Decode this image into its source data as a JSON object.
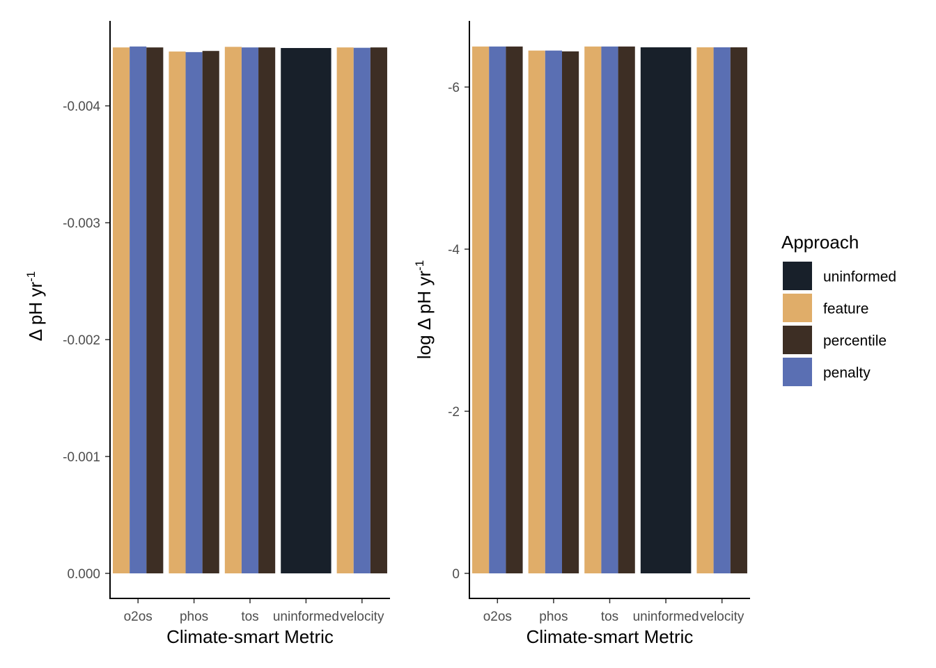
{
  "chart_data": [
    {
      "type": "bar",
      "xlabel": "Climate-smart Metric",
      "ylabel": "Δ pH yr",
      "ylabel_superscript": "-1",
      "categories": [
        "o2os",
        "phos",
        "tos",
        "uninformed",
        "velocity"
      ],
      "ylim": [
        0,
        -0.00476
      ],
      "yticks": [
        0.0,
        -0.001,
        -0.002,
        -0.003,
        -0.004
      ],
      "ytick_labels": [
        "0.000",
        "-0.001",
        "-0.002",
        "-0.003",
        "-0.004"
      ],
      "series": [
        {
          "name": "feature",
          "values": [
            -0.0045,
            -0.004465,
            -0.004505,
            null,
            -0.0045
          ]
        },
        {
          "name": "penalty",
          "values": [
            -0.004508,
            -0.00446,
            -0.0045,
            null,
            -0.004497
          ]
        },
        {
          "name": "percentile",
          "values": [
            -0.0045,
            -0.00447,
            -0.0045,
            null,
            -0.0045
          ]
        },
        {
          "name": "uninformed",
          "values": [
            null,
            null,
            null,
            -0.004495,
            null
          ]
        }
      ]
    },
    {
      "type": "bar",
      "xlabel": "Climate-smart Metric",
      "ylabel": "log Δ pH yr",
      "ylabel_superscript": "-1",
      "categories": [
        "o2os",
        "phos",
        "tos",
        "uninformed",
        "velocity"
      ],
      "ylim": [
        0,
        -6.86
      ],
      "yticks": [
        0,
        -2,
        -4,
        -6
      ],
      "ytick_labels": [
        "0",
        "-2",
        "-4",
        "-6"
      ],
      "series": [
        {
          "name": "feature",
          "values": [
            -6.5,
            -6.45,
            -6.5,
            null,
            -6.49
          ]
        },
        {
          "name": "penalty",
          "values": [
            -6.5,
            -6.45,
            -6.5,
            null,
            -6.49
          ]
        },
        {
          "name": "percentile",
          "values": [
            -6.5,
            -6.44,
            -6.5,
            null,
            -6.49
          ]
        },
        {
          "name": "uninformed",
          "values": [
            null,
            null,
            null,
            -6.49,
            null
          ]
        }
      ]
    }
  ],
  "legend": {
    "title": "Approach",
    "placement": "right",
    "items": [
      {
        "label": "uninformed",
        "color": "#18202a"
      },
      {
        "label": "feature",
        "color": "#e0ad69"
      },
      {
        "label": "percentile",
        "color": "#3d2e24"
      },
      {
        "label": "penalty",
        "color": "#5a6fb3"
      }
    ]
  },
  "colors": {
    "feature": "#e0ad69",
    "penalty": "#5a6fb3",
    "percentile": "#3d2e24",
    "uninformed": "#18202a"
  }
}
